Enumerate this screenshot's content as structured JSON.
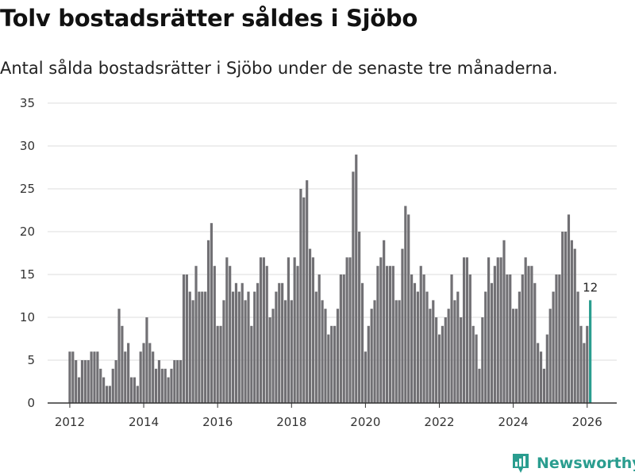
{
  "title": "Tolv bostadsrätter såldes i Sjöbo",
  "subtitle": "Antal sålda bostadsrätter i Sjöbo under de senaste tre månaderna.",
  "brand": {
    "name": "Newsworthy",
    "logo_icon": "newsworthy-logo-icon"
  },
  "colors": {
    "bar": "#717074",
    "highlight": "#2a9d8f",
    "grid": "#dddddd",
    "axis": "#333333"
  },
  "chart_data": {
    "type": "bar",
    "title": "Tolv bostadsrätter såldes i Sjöbo",
    "subtitle": "Antal sålda bostadsrätter i Sjöbo under de senaste tre månaderna.",
    "xlabel": "",
    "ylabel": "",
    "ylim": [
      0,
      35
    ],
    "yticks": [
      "0",
      "5",
      "10",
      "15",
      "20",
      "25",
      "30",
      "35"
    ],
    "xlim": [
      2011.4,
      2026.8
    ],
    "xticks": [
      "2012",
      "2014",
      "2016",
      "2018",
      "2020",
      "2022",
      "2024",
      "2026"
    ],
    "grid": true,
    "start": "2012-01",
    "frequency": "monthly",
    "values": [
      6,
      6,
      5,
      3,
      5,
      5,
      5,
      6,
      6,
      6,
      4,
      3,
      2,
      2,
      4,
      5,
      11,
      9,
      6,
      7,
      3,
      3,
      2,
      6,
      7,
      10,
      7,
      6,
      4,
      5,
      4,
      4,
      3,
      4,
      5,
      5,
      5,
      15,
      15,
      13,
      12,
      16,
      13,
      13,
      13,
      19,
      21,
      16,
      9,
      9,
      12,
      17,
      16,
      13,
      14,
      13,
      14,
      12,
      13,
      9,
      13,
      14,
      17,
      17,
      16,
      10,
      11,
      13,
      14,
      14,
      12,
      17,
      12,
      17,
      16,
      25,
      24,
      26,
      18,
      17,
      13,
      15,
      12,
      11,
      8,
      9,
      9,
      11,
      15,
      15,
      17,
      17,
      27,
      29,
      20,
      14,
      6,
      9,
      11,
      12,
      16,
      17,
      19,
      16,
      16,
      16,
      12,
      12,
      18,
      23,
      22,
      15,
      14,
      13,
      16,
      15,
      13,
      11,
      12,
      10,
      8,
      9,
      10,
      11,
      15,
      12,
      13,
      10,
      17,
      17,
      15,
      9,
      8,
      4,
      10,
      13,
      17,
      14,
      16,
      17,
      17,
      19,
      15,
      15,
      11,
      11,
      13,
      15,
      17,
      16,
      16,
      14,
      7,
      6,
      4,
      8,
      11,
      13,
      15,
      15,
      20,
      20,
      22,
      19,
      18,
      13,
      9,
      7,
      9,
      12
    ],
    "highlight_last": 1,
    "data_labels": [
      {
        "index": 169,
        "text": "12"
      }
    ]
  }
}
